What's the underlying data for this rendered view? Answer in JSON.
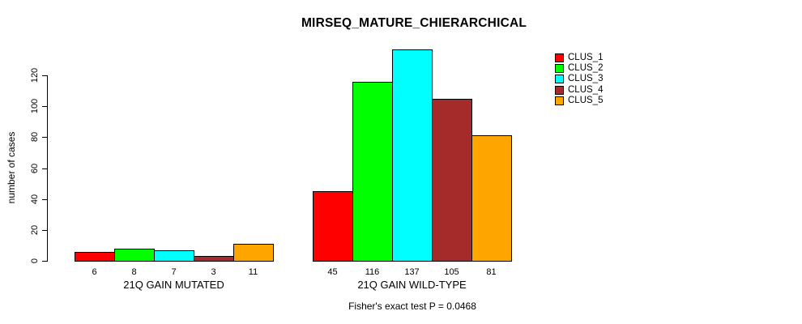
{
  "page": {
    "background": "#ffffff",
    "text_color": "#000000"
  },
  "chart_data": {
    "type": "bar",
    "title": "MIRSEQ_MATURE_CHIERARCHICAL",
    "ylabel": "number of cases",
    "xlabel": "",
    "footer": "Fisher's exact test P = 0.0468",
    "categories": [
      "21Q GAIN MUTATED",
      "21Q GAIN WILD-TYPE"
    ],
    "series": [
      {
        "name": "CLUS_1",
        "color": "#ff0000",
        "values": [
          6,
          45
        ]
      },
      {
        "name": "CLUS_2",
        "color": "#00ff00",
        "values": [
          8,
          116
        ]
      },
      {
        "name": "CLUS_3",
        "color": "#00ffff",
        "values": [
          7,
          137
        ]
      },
      {
        "name": "CLUS_4",
        "color": "#a52a2a",
        "values": [
          3,
          105
        ]
      },
      {
        "name": "CLUS_5",
        "color": "#ffa500",
        "values": [
          11,
          81
        ]
      }
    ],
    "bar_value_labels": [
      [
        "6",
        "8",
        "7",
        "3",
        "11"
      ],
      [
        "45",
        "116",
        "137",
        "105",
        "81"
      ]
    ],
    "yticks": [
      0,
      20,
      40,
      60,
      80,
      100,
      120
    ],
    "ylim": [
      0,
      137
    ],
    "grid": false,
    "legend": {
      "position": "top-right",
      "entries": [
        "CLUS_1",
        "CLUS_2",
        "CLUS_3",
        "CLUS_4",
        "CLUS_5"
      ]
    },
    "bar_border_color": "#000000",
    "axis_color": "#000000"
  }
}
